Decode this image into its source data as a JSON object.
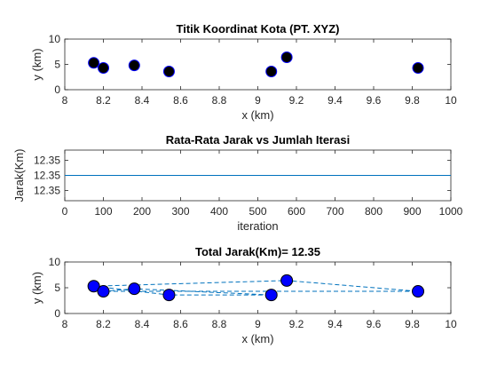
{
  "chart_data": [
    {
      "type": "scatter",
      "title": "Titik Koordinat Kota (PT. XYZ)",
      "xlabel": "x  (km)",
      "ylabel": "y  (km)",
      "xlim": [
        8,
        10
      ],
      "ylim": [
        0,
        10
      ],
      "xticks": [
        "8",
        "8.2",
        "8.4",
        "8.6",
        "8.8",
        "9",
        "9.2",
        "9.4",
        "9.6",
        "9.8",
        "10"
      ],
      "yticks": [
        "0",
        "5",
        "10"
      ],
      "grid": false,
      "series": [
        {
          "x": [
            8.15,
            8.2,
            8.36,
            8.54,
            9.07,
            9.15,
            9.83
          ],
          "y": [
            5.3,
            4.3,
            4.8,
            3.6,
            3.6,
            6.4,
            4.3
          ]
        }
      ],
      "marker_color": "#000000",
      "marker_edge": "#0000ff"
    },
    {
      "type": "line",
      "title": "Rata-Rata Jarak vs Jumlah Iterasi",
      "xlabel": "iteration",
      "ylabel": "Jarak(Km)",
      "xlim": [
        0,
        1000
      ],
      "ylim": [
        12.345,
        12.355
      ],
      "xticks": [
        "0",
        "100",
        "200",
        "300",
        "400",
        "500",
        "600",
        "700",
        "800",
        "900",
        "1000"
      ],
      "yticks": [
        "12.35",
        "12.35",
        "12.35"
      ],
      "grid": false,
      "series": [
        {
          "x": [
            0,
            1000
          ],
          "y": [
            12.35,
            12.35
          ]
        }
      ],
      "line_color": "#0072bd"
    },
    {
      "type": "line",
      "title": "Total Jarak(Km)= 12.35",
      "xlabel": "x (km)",
      "ylabel": "y (km)",
      "xlim": [
        8,
        10
      ],
      "ylim": [
        0,
        10
      ],
      "xticks": [
        "8",
        "8.2",
        "8.4",
        "8.6",
        "8.8",
        "9",
        "9.2",
        "9.4",
        "9.6",
        "9.8",
        "10"
      ],
      "yticks": [
        "0",
        "5",
        "10"
      ],
      "grid": false,
      "route": {
        "x": [
          8.15,
          9.15,
          9.83,
          8.2,
          8.36,
          9.07,
          8.54,
          8.15
        ],
        "y": [
          5.3,
          6.4,
          4.3,
          4.3,
          4.8,
          3.6,
          3.6,
          5.3
        ]
      },
      "points": {
        "x": [
          8.15,
          8.2,
          8.36,
          8.54,
          9.07,
          9.15,
          9.83
        ],
        "y": [
          5.3,
          4.3,
          4.8,
          3.6,
          3.6,
          6.4,
          4.3
        ]
      },
      "line_color": "#0072bd",
      "marker_color": "#0000ff",
      "marker_edge": "#000000"
    }
  ]
}
